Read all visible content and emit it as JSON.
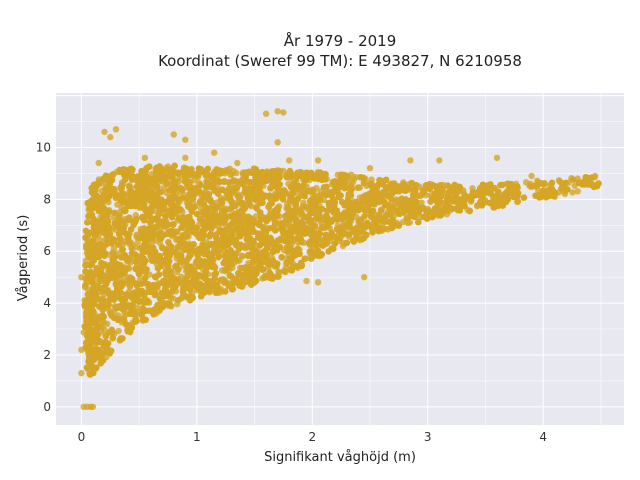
{
  "chart_data": {
    "type": "scatter",
    "title_line1": "År 1979 - 2019",
    "title_line2": "Koordinat (Sweref 99 TM): E 493827, N 6210958",
    "xlabel": "Signifikant våghöjd (m)",
    "ylabel": "Vågperiod (s)",
    "xlim": [
      -0.22,
      4.7
    ],
    "ylim": [
      -0.7,
      12.1
    ],
    "xticks": [
      0,
      1,
      2,
      3,
      4
    ],
    "yticks": [
      0,
      2,
      4,
      6,
      8,
      10
    ],
    "grid": true,
    "legend": "none",
    "colors": {
      "marker": "#D4A526",
      "plot_background": "#E8E8F0",
      "grid": "#FFFFFF"
    },
    "marker_opacity": 0.8,
    "cloud_polygon": [
      [
        0.05,
        1.1
      ],
      [
        0.1,
        1.2
      ],
      [
        0.2,
        1.8
      ],
      [
        0.4,
        2.8
      ],
      [
        0.6,
        3.5
      ],
      [
        0.8,
        3.9
      ],
      [
        1.0,
        4.2
      ],
      [
        1.3,
        4.5
      ],
      [
        1.6,
        4.8
      ],
      [
        1.85,
        5.2
      ],
      [
        2.1,
        5.9
      ],
      [
        2.4,
        6.4
      ],
      [
        2.7,
        6.9
      ],
      [
        3.0,
        7.2
      ],
      [
        3.3,
        7.5
      ],
      [
        3.6,
        7.7
      ],
      [
        3.9,
        8.0
      ],
      [
        4.2,
        8.2
      ],
      [
        4.5,
        8.5
      ],
      [
        4.5,
        8.9
      ],
      [
        4.2,
        8.8
      ],
      [
        3.9,
        8.7
      ],
      [
        3.5,
        8.6
      ],
      [
        3.1,
        8.6
      ],
      [
        2.8,
        8.7
      ],
      [
        2.5,
        8.9
      ],
      [
        2.2,
        9.0
      ],
      [
        1.9,
        9.1
      ],
      [
        1.6,
        9.2
      ],
      [
        1.3,
        9.2
      ],
      [
        1.0,
        9.2
      ],
      [
        0.8,
        9.3
      ],
      [
        0.6,
        9.3
      ],
      [
        0.4,
        9.2
      ],
      [
        0.2,
        9.0
      ],
      [
        0.1,
        8.6
      ],
      [
        0.05,
        7.8
      ],
      [
        0.03,
        6.0
      ],
      [
        0.02,
        4.0
      ],
      [
        0.02,
        2.0
      ]
    ],
    "outliers": [
      {
        "x": 1.6,
        "y": 11.3
      },
      {
        "x": 1.7,
        "y": 11.4
      },
      {
        "x": 1.75,
        "y": 11.35
      },
      {
        "x": 0.2,
        "y": 10.6
      },
      {
        "x": 0.3,
        "y": 10.7
      },
      {
        "x": 0.25,
        "y": 10.4
      },
      {
        "x": 0.8,
        "y": 10.5
      },
      {
        "x": 0.9,
        "y": 10.3
      },
      {
        "x": 1.7,
        "y": 10.2
      },
      {
        "x": 0.15,
        "y": 9.4
      },
      {
        "x": 0.55,
        "y": 9.6
      },
      {
        "x": 0.9,
        "y": 9.6
      },
      {
        "x": 1.15,
        "y": 9.8
      },
      {
        "x": 1.35,
        "y": 9.4
      },
      {
        "x": 1.8,
        "y": 9.5
      },
      {
        "x": 2.05,
        "y": 9.5
      },
      {
        "x": 2.5,
        "y": 9.2
      },
      {
        "x": 2.85,
        "y": 9.5
      },
      {
        "x": 3.1,
        "y": 9.5
      },
      {
        "x": 3.6,
        "y": 9.6
      },
      {
        "x": 3.9,
        "y": 8.9
      },
      {
        "x": 4.1,
        "y": 8.1
      },
      {
        "x": 4.3,
        "y": 8.8
      },
      {
        "x": 4.45,
        "y": 8.9
      },
      {
        "x": 2.45,
        "y": 5.0
      },
      {
        "x": 2.05,
        "y": 4.8
      },
      {
        "x": 1.95,
        "y": 4.85
      },
      {
        "x": 0.0,
        "y": 5.0
      },
      {
        "x": 0.0,
        "y": 1.3
      },
      {
        "x": 0.0,
        "y": 2.2
      },
      {
        "x": 0.02,
        "y": 0.0
      },
      {
        "x": 0.05,
        "y": 0.0
      },
      {
        "x": 0.08,
        "y": 0.0
      },
      {
        "x": 0.1,
        "y": 0.0
      }
    ]
  }
}
